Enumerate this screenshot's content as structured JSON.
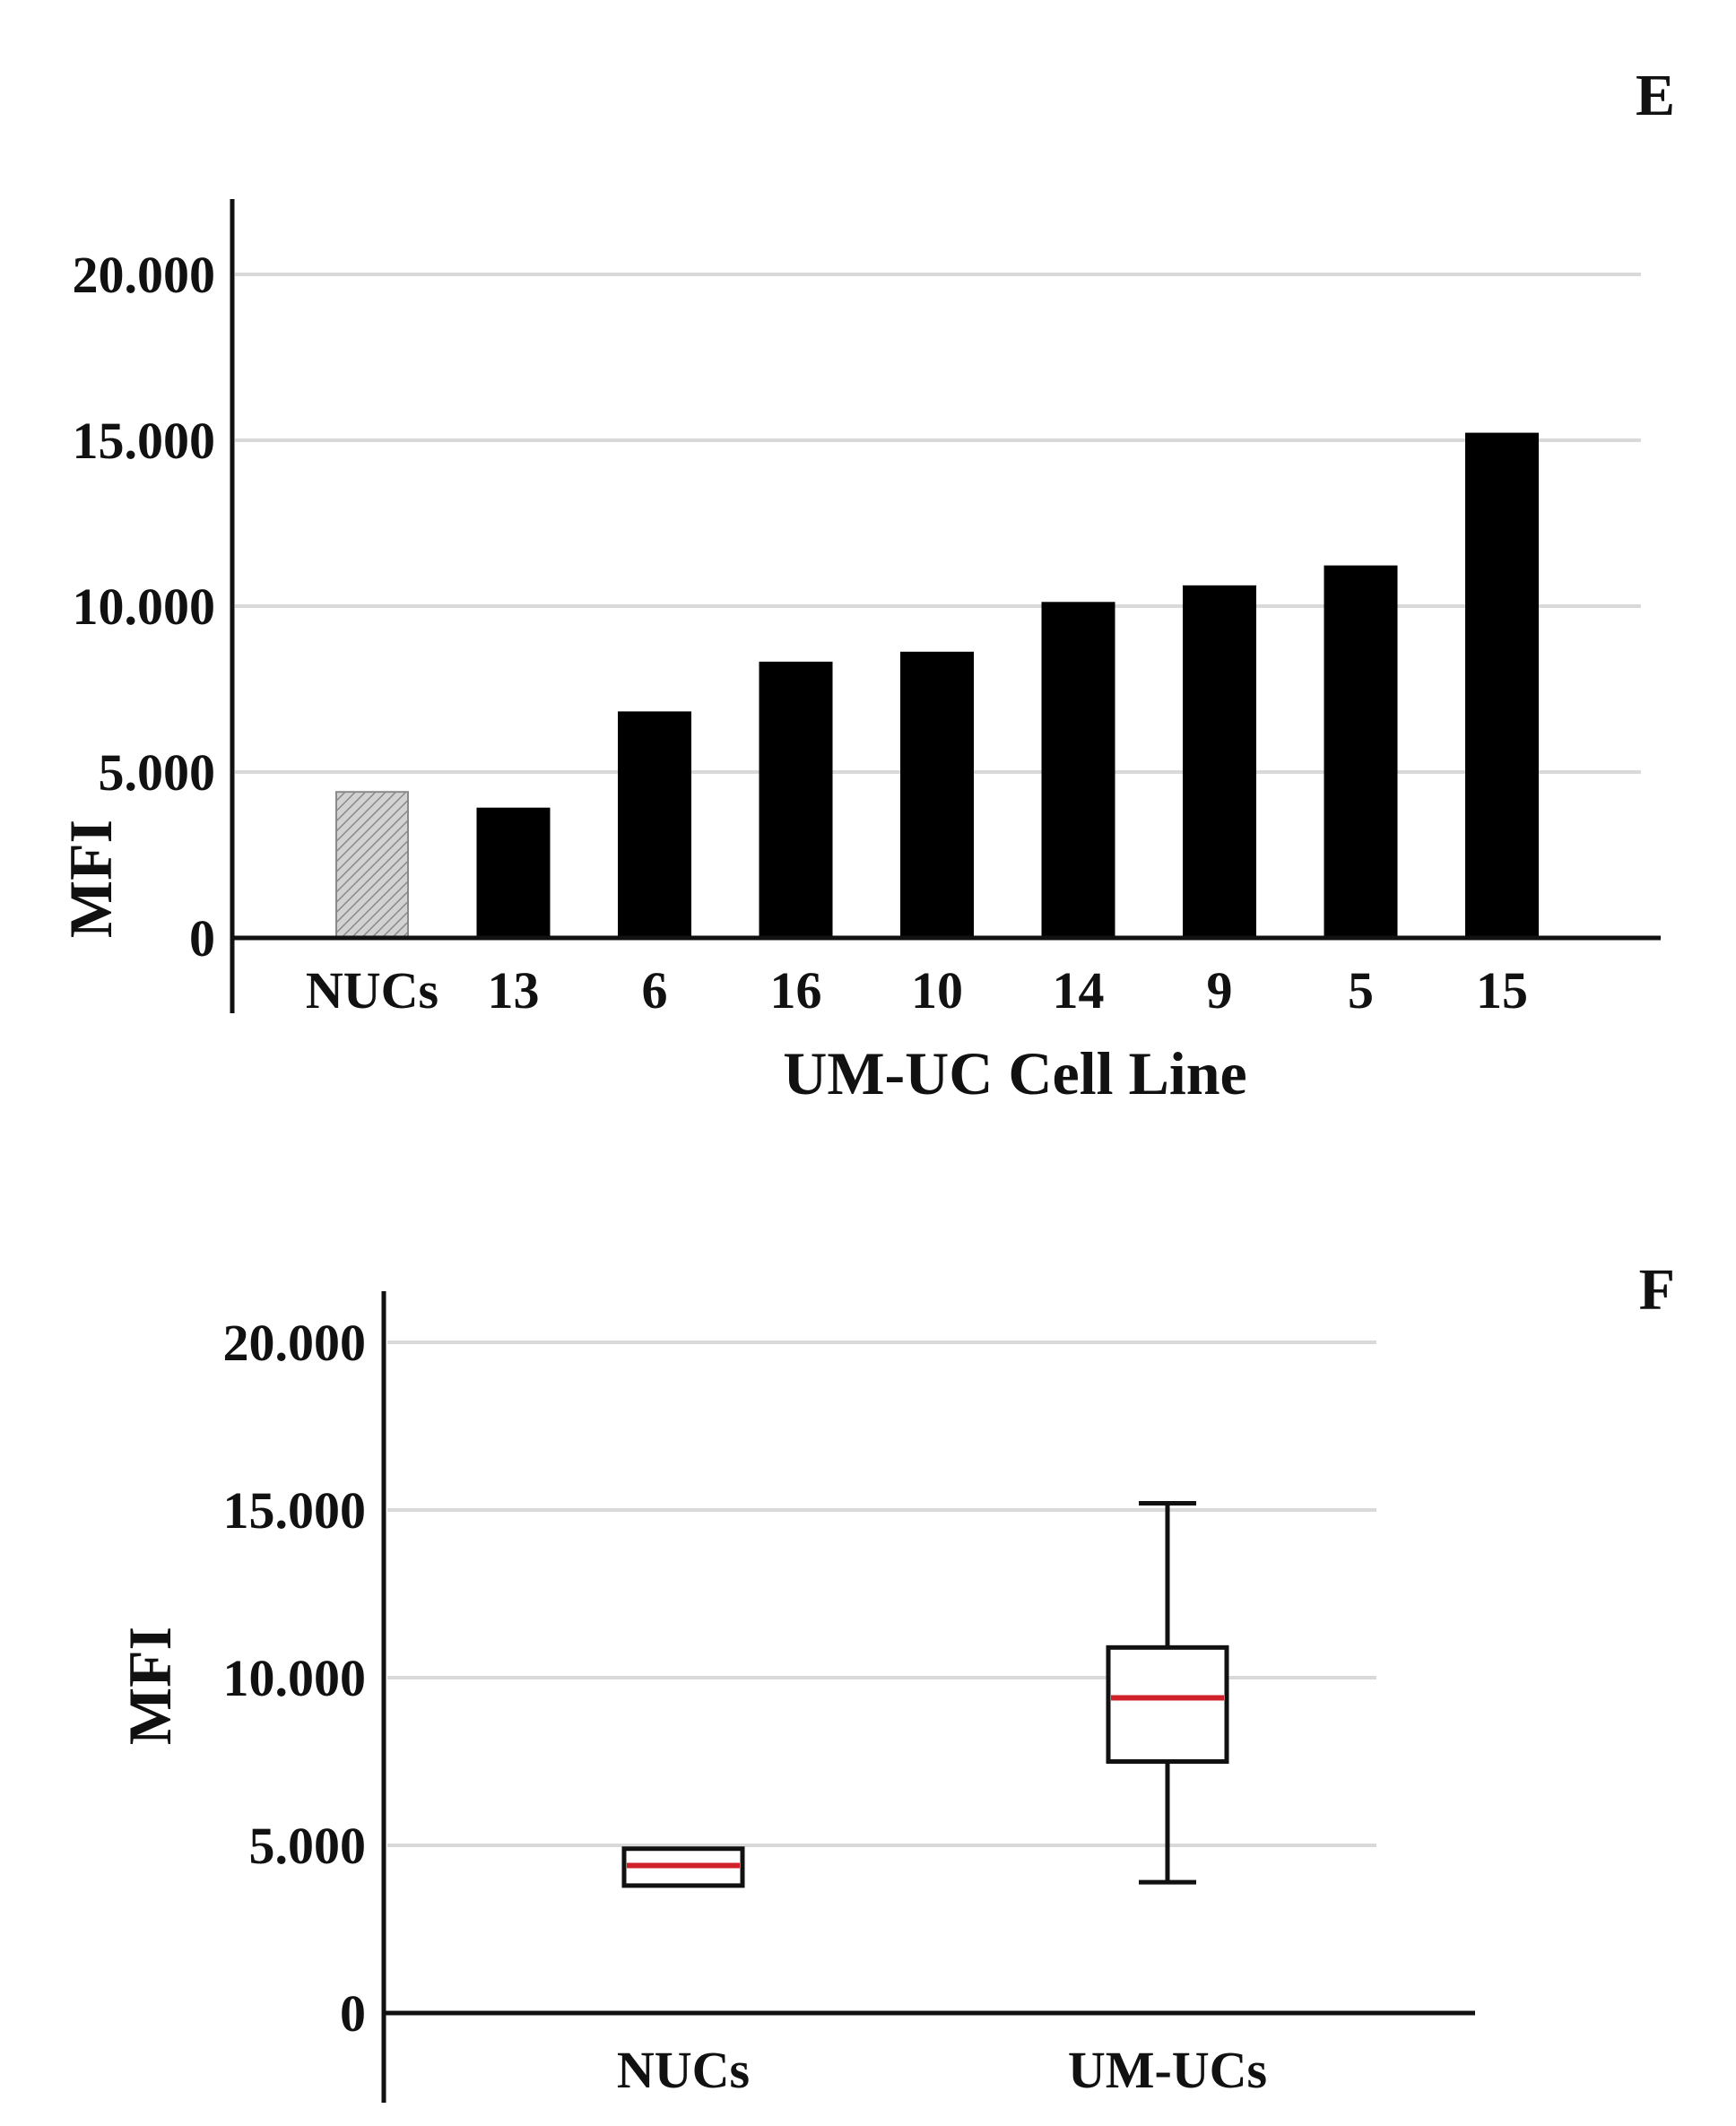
{
  "chart_data": [
    {
      "panel": "E",
      "type": "bar",
      "xlabel": "UM-UC Cell Line",
      "ylabel": "MFI",
      "ylim": [
        0,
        20000
      ],
      "yticks": [
        0,
        5000,
        10000,
        15000,
        20000
      ],
      "ytick_labels": [
        "0",
        "5.000",
        "10.000",
        "15.000",
        "20.000"
      ],
      "grid": true,
      "categories": [
        "NUCs",
        "13",
        "6",
        "16",
        "10",
        "14",
        "9",
        "5",
        "15"
      ],
      "values": [
        4400,
        3900,
        6800,
        8300,
        8600,
        10100,
        10600,
        11200,
        15200
      ],
      "bar_styles": [
        "hatched",
        "solid",
        "solid",
        "solid",
        "solid",
        "solid",
        "solid",
        "solid",
        "solid"
      ],
      "colors": {
        "bar": "#000000",
        "reference_bar": "#c8c8c8"
      }
    },
    {
      "panel": "F",
      "type": "box",
      "xlabel": "",
      "ylabel": "MFI",
      "ylim": [
        0,
        20000
      ],
      "yticks": [
        0,
        5000,
        10000,
        15000,
        20000
      ],
      "ytick_labels": [
        "0",
        "5.000",
        "10.000",
        "15.000",
        "20.000"
      ],
      "grid": true,
      "categories": [
        "NUCs",
        "UM-UCs"
      ],
      "boxes": [
        {
          "whisker_low": 3800,
          "q1": 3800,
          "median": 4400,
          "q3": 4900,
          "whisker_high": 4900,
          "whiskers": false
        },
        {
          "whisker_low": 3900,
          "q1": 7500,
          "median": 9400,
          "q3": 10900,
          "whisker_high": 15200,
          "whiskers": true
        }
      ],
      "colors": {
        "median": "#d0202a",
        "box": "#111111"
      }
    }
  ]
}
